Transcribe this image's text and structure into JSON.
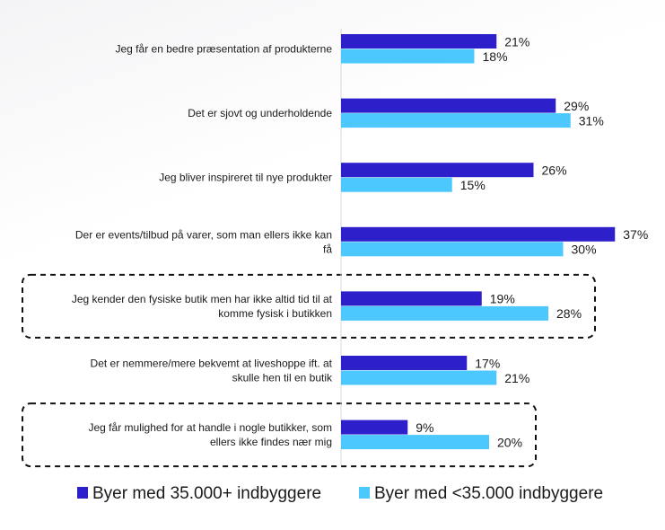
{
  "chart_data": {
    "type": "bar",
    "orientation": "horizontal",
    "title": "",
    "xlabel": "",
    "ylabel": "",
    "xlim": [
      0,
      40
    ],
    "grid": false,
    "legend_position": "bottom",
    "categories": [
      {
        "lines": [
          "Jeg får en bedre præsentation af produkterne"
        ],
        "highlighted": false
      },
      {
        "lines": [
          "Det er sjovt og underholdende"
        ],
        "highlighted": false
      },
      {
        "lines": [
          "Jeg bliver inspireret til nye produkter"
        ],
        "highlighted": false
      },
      {
        "lines": [
          "Der er events/tilbud på varer, som man ellers ikke kan",
          "få"
        ],
        "highlighted": false
      },
      {
        "lines": [
          "Jeg kender den fysiske butik men har ikke altid tid til at",
          "komme fysisk i butikken"
        ],
        "highlighted": true
      },
      {
        "lines": [
          "Det er nemmere/mere bekvemt at liveshoppe ift. at",
          "skulle hen til en butik"
        ],
        "highlighted": false
      },
      {
        "lines": [
          "Jeg får mulighed for at handle i nogle butikker, som",
          "ellers ikke findes nær mig"
        ],
        "highlighted": true
      }
    ],
    "series": [
      {
        "name": "Byer med 35.000+ indbyggere",
        "color": "#2d1fc9",
        "values": [
          21,
          29,
          26,
          37,
          19,
          17,
          9
        ]
      },
      {
        "name": "Byer med <35.000 indbyggere",
        "color": "#4dc8ff",
        "values": [
          18,
          31,
          15,
          30,
          28,
          21,
          20
        ]
      }
    ],
    "value_suffix": "%"
  }
}
